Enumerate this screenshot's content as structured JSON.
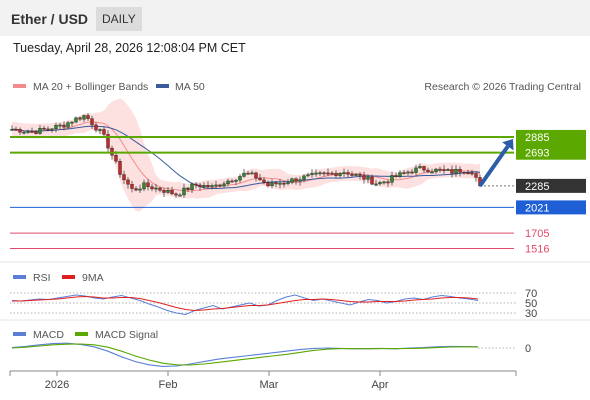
{
  "header": {
    "symbol": "Ether / USD",
    "period": "DAILY",
    "datetime": "Tuesday, April 28, 2026 12:08:04 PM CET"
  },
  "colors": {
    "bollinger_fill": "#fde0e0",
    "ma20": "#f28c8c",
    "ma50": "#3b5b9b",
    "resistance": "#5aa800",
    "support": "#1f5fd6",
    "last_price": "#333333",
    "lower_level": "#e24a6a",
    "rsi": "#5b7fd6",
    "rsi_ma": "#e02020",
    "macd": "#5b7fd6",
    "macd_signal": "#5aa800",
    "candle_up": "#2f8a2f",
    "candle_down": "#c62828",
    "arrow": "#2c5ea8"
  },
  "chart_data": [
    {
      "type": "candlestick",
      "panel": "price",
      "title": "",
      "legend": [
        {
          "label": "MA 20 + Bollinger Bands",
          "color": "#f28c8c"
        },
        {
          "label": "MA 50",
          "color": "#3b5b9b"
        }
      ],
      "source": "Research © 2026 Trading Central",
      "x_labels": [
        "2026",
        "Feb",
        "Mar",
        "Apr"
      ],
      "ylim": [
        1400,
        3400
      ],
      "price_path": [
        [
          0,
          2980
        ],
        [
          6,
          2950
        ],
        [
          10,
          2990
        ],
        [
          14,
          3030
        ],
        [
          17,
          3100
        ],
        [
          20,
          3150
        ],
        [
          22,
          3050
        ],
        [
          25,
          2900
        ],
        [
          27,
          2700
        ],
        [
          30,
          2400
        ],
        [
          33,
          2230
        ],
        [
          36,
          2290
        ],
        [
          40,
          2250
        ],
        [
          45,
          2180
        ],
        [
          50,
          2300
        ],
        [
          55,
          2270
        ],
        [
          58,
          2330
        ],
        [
          62,
          2400
        ],
        [
          64,
          2440
        ],
        [
          67,
          2390
        ],
        [
          70,
          2290
        ],
        [
          73,
          2320
        ],
        [
          77,
          2360
        ],
        [
          80,
          2390
        ],
        [
          84,
          2420
        ],
        [
          88,
          2440
        ],
        [
          91,
          2460
        ],
        [
          93,
          2430
        ],
        [
          95,
          2400
        ],
        [
          97,
          2370
        ],
        [
          100,
          2310
        ],
        [
          103,
          2360
        ],
        [
          106,
          2420
        ],
        [
          109,
          2470
        ],
        [
          112,
          2500
        ],
        [
          115,
          2480
        ],
        [
          118,
          2470
        ],
        [
          120,
          2455
        ],
        [
          123,
          2480
        ],
        [
          126,
          2470
        ],
        [
          128,
          2285
        ]
      ],
      "levels": [
        {
          "label": "2885",
          "value": 2885,
          "kind": "resistance"
        },
        {
          "label": "2693",
          "value": 2693,
          "kind": "resistance"
        },
        {
          "label": "2285",
          "value": 2285,
          "kind": "last_price"
        },
        {
          "label": "2021",
          "value": 2021,
          "kind": "support"
        },
        {
          "label": "1705",
          "value": 1705,
          "kind": "lower"
        },
        {
          "label": "1516",
          "value": 1516,
          "kind": "lower"
        }
      ],
      "projection": {
        "from_value": 2285,
        "to_value": 2885,
        "direction": "up"
      }
    },
    {
      "type": "line",
      "panel": "rsi",
      "legend": [
        {
          "label": "RSI",
          "color": "#5b7fd6"
        },
        {
          "label": "9MA",
          "color": "#e02020"
        }
      ],
      "ylim": [
        20,
        80
      ],
      "y_ticks": [
        {
          "label": "70",
          "value": 70
        },
        {
          "label": "50",
          "value": 50
        },
        {
          "label": "30",
          "value": 30
        }
      ],
      "series": [
        {
          "name": "RSI",
          "values": [
            55,
            54,
            56,
            58,
            57,
            60,
            63,
            66,
            64,
            60,
            58,
            62,
            65,
            60,
            55,
            48,
            42,
            35,
            30,
            27,
            35,
            40,
            45,
            38,
            42,
            46,
            50,
            44,
            46,
            55,
            62,
            66,
            60,
            55,
            58,
            54,
            50,
            46,
            52,
            57,
            55,
            50,
            53,
            58,
            60,
            57,
            62,
            65,
            63,
            60,
            58,
            55
          ]
        },
        {
          "name": "9MA",
          "values": [
            54,
            54,
            55,
            56,
            57,
            58,
            60,
            62,
            63,
            62,
            60,
            60,
            61,
            61,
            59,
            55,
            51,
            46,
            41,
            37,
            35,
            36,
            38,
            39,
            41,
            43,
            45,
            45,
            46,
            49,
            52,
            55,
            57,
            57,
            58,
            57,
            55,
            53,
            52,
            52,
            53,
            53,
            53,
            54,
            56,
            57,
            58,
            60,
            61,
            61,
            60,
            58
          ]
        }
      ]
    },
    {
      "type": "line",
      "panel": "macd",
      "legend": [
        {
          "label": "MACD",
          "color": "#5b7fd6"
        },
        {
          "label": "MACD Signal",
          "color": "#5aa800"
        }
      ],
      "ylim": [
        -250,
        100
      ],
      "y_ticks": [
        {
          "label": "0",
          "value": 0
        }
      ],
      "series": [
        {
          "name": "MACD",
          "values": [
            5,
            20,
            40,
            55,
            60,
            45,
            15,
            -40,
            -110,
            -170,
            -210,
            -230,
            -225,
            -200,
            -170,
            -140,
            -120,
            -100,
            -80,
            -60,
            -40,
            -20,
            -5,
            0,
            -5,
            -10,
            -8,
            -5,
            -10,
            0,
            5,
            15,
            20,
            18,
            15
          ]
        },
        {
          "name": "MACD Signal",
          "values": [
            0,
            10,
            25,
            40,
            48,
            50,
            40,
            10,
            -40,
            -100,
            -150,
            -190,
            -210,
            -212,
            -200,
            -180,
            -160,
            -140,
            -120,
            -100,
            -80,
            -55,
            -30,
            -15,
            -8,
            -8,
            -10,
            -8,
            -8,
            -6,
            -2,
            5,
            12,
            15,
            14
          ]
        }
      ]
    }
  ]
}
